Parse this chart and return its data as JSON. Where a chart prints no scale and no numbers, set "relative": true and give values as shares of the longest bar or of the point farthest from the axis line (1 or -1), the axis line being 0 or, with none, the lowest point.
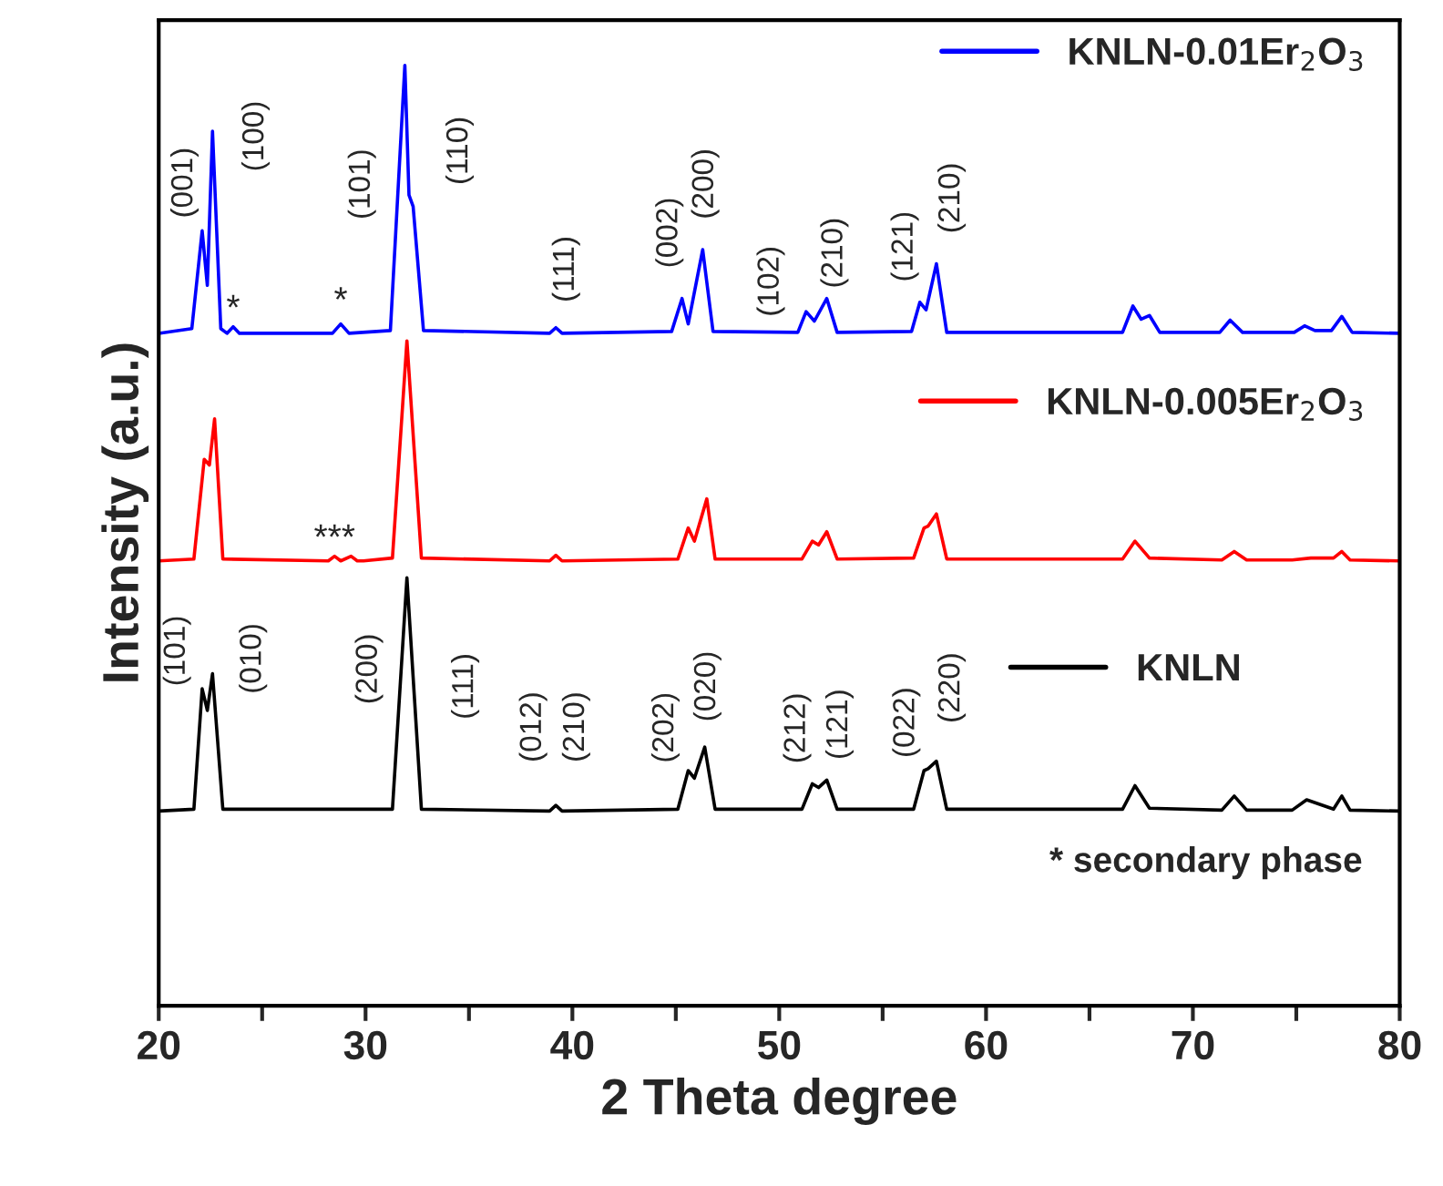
{
  "chart_data": {
    "type": "line",
    "relative": true,
    "xlabel": "2 Theta degree",
    "ylabel": "Intensity (a.u.)",
    "xlim": [
      20,
      80
    ],
    "xticks": [
      20,
      {
        "value": 25,
        "label": null
      },
      30,
      {
        "value": 35,
        "label": null
      },
      40,
      {
        "value": 45,
        "label": null
      },
      50,
      {
        "value": 55,
        "label": null
      },
      60,
      {
        "value": 65,
        "label": null
      },
      70,
      {
        "value": 75,
        "label": null
      },
      80
    ],
    "tick_labels": "x",
    "grid": false,
    "legend": "right",
    "marker": "none",
    "line_style": "solid",
    "series": [
      {
        "name": "KNLN-0.01Er$_{2}$O$_{3}$",
        "color": "#0000ff",
        "x": [
          20,
          21.6,
          22.1,
          22.35,
          22.6,
          23.0,
          23.3,
          23.6,
          23.9,
          28.4,
          28.8,
          29.2,
          31.2,
          31.9,
          32.1,
          32.3,
          32.8,
          38.9,
          39.2,
          39.5,
          44.8,
          45.3,
          45.6,
          46.3,
          46.8,
          50.9,
          51.3,
          51.7,
          52.3,
          52.8,
          56.4,
          56.8,
          57.1,
          57.6,
          58.1,
          66.6,
          67.1,
          67.5,
          67.9,
          68.4,
          71.3,
          71.8,
          72.4,
          74.9,
          75.4,
          75.9,
          76.7,
          77.2,
          77.7,
          80
        ],
        "values": [
          0.715,
          0.72,
          0.824,
          0.766,
          0.93,
          0.72,
          0.715,
          0.722,
          0.715,
          0.715,
          0.725,
          0.715,
          0.718,
          1.0,
          0.862,
          0.85,
          0.718,
          0.715,
          0.721,
          0.715,
          0.717,
          0.752,
          0.725,
          0.804,
          0.717,
          0.716,
          0.738,
          0.728,
          0.752,
          0.716,
          0.717,
          0.748,
          0.74,
          0.789,
          0.716,
          0.716,
          0.744,
          0.73,
          0.734,
          0.716,
          0.716,
          0.729,
          0.716,
          0.716,
          0.723,
          0.718,
          0.718,
          0.733,
          0.716,
          0.715
        ]
      },
      {
        "name": "KNLN-0.005Er$_{2}$O$_{3}$",
        "color": "#ff0000",
        "x": [
          20,
          21.7,
          22.2,
          22.45,
          22.7,
          23.1,
          28.2,
          28.5,
          28.8,
          29.3,
          29.6,
          29.9,
          31.3,
          32.0,
          32.7,
          38.9,
          39.2,
          39.5,
          45.1,
          45.6,
          45.9,
          46.5,
          46.9,
          51.1,
          51.6,
          51.9,
          52.3,
          52.8,
          56.5,
          57.0,
          57.2,
          57.6,
          58.1,
          66.6,
          67.2,
          67.9,
          71.4,
          72.0,
          72.6,
          74.8,
          75.7,
          76.8,
          77.2,
          77.6,
          80
        ],
        "values": [
          0.473,
          0.475,
          0.581,
          0.575,
          0.624,
          0.475,
          0.473,
          0.478,
          0.473,
          0.478,
          0.473,
          0.473,
          0.476,
          0.707,
          0.476,
          0.473,
          0.479,
          0.473,
          0.475,
          0.508,
          0.494,
          0.539,
          0.475,
          0.475,
          0.494,
          0.49,
          0.504,
          0.475,
          0.476,
          0.508,
          0.51,
          0.523,
          0.475,
          0.475,
          0.494,
          0.476,
          0.474,
          0.483,
          0.474,
          0.474,
          0.476,
          0.476,
          0.483,
          0.474,
          0.473
        ]
      },
      {
        "name": "KNLN",
        "color": "#000000",
        "x": [
          20,
          21.7,
          22.1,
          22.35,
          22.6,
          23.1,
          31.3,
          32.0,
          32.7,
          38.9,
          39.2,
          39.5,
          45.1,
          45.6,
          45.9,
          46.4,
          46.9,
          51.1,
          51.6,
          51.9,
          52.3,
          52.8,
          56.5,
          57.0,
          57.2,
          57.6,
          58.1,
          66.6,
          67.2,
          67.9,
          71.4,
          72.0,
          72.6,
          74.8,
          75.5,
          76.8,
          77.2,
          77.6,
          80
        ],
        "values": [
          0.207,
          0.209,
          0.337,
          0.314,
          0.353,
          0.209,
          0.209,
          0.455,
          0.209,
          0.207,
          0.213,
          0.207,
          0.209,
          0.25,
          0.242,
          0.275,
          0.209,
          0.209,
          0.236,
          0.232,
          0.24,
          0.209,
          0.209,
          0.25,
          0.252,
          0.26,
          0.209,
          0.209,
          0.234,
          0.21,
          0.208,
          0.223,
          0.208,
          0.208,
          0.219,
          0.209,
          0.223,
          0.208,
          0.207
        ]
      }
    ],
    "annotations": [
      {
        "text": "(001)",
        "x": 22.1,
        "y": 0.824
      },
      {
        "text": "(100)",
        "x": 22.6,
        "y": 0.93
      },
      {
        "text": "(101)",
        "x": 31.9,
        "y": 1.0
      },
      {
        "text": "(110)",
        "x": 32.1,
        "y": 0.862
      },
      {
        "text": "(111)",
        "x": 39.2,
        "y": 0.721
      },
      {
        "text": "(002)",
        "x": 45.3,
        "y": 0.752
      },
      {
        "text": "(200)",
        "x": 46.3,
        "y": 0.804
      },
      {
        "text": "(102)",
        "x": 51.3,
        "y": 0.738
      },
      {
        "text": "(210)",
        "x": 52.3,
        "y": 0.752
      },
      {
        "text": "(121)",
        "x": 56.8,
        "y": 0.748
      },
      {
        "text": "(210)",
        "x": 57.6,
        "y": 0.789
      },
      {
        "text": "*",
        "x": 23.6,
        "y": 0.722
      },
      {
        "text": "*",
        "x": 28.8,
        "y": 0.725
      },
      {
        "text": "***",
        "x": 28.5,
        "y": 0.478
      },
      {
        "text": "(101)",
        "x": 22.1,
        "y": 0.337
      },
      {
        "text": "(010)",
        "x": 22.6,
        "y": 0.353
      },
      {
        "text": "(200)",
        "x": 32.0,
        "y": 0.455
      },
      {
        "text": "(111)",
        "x": 32.0,
        "y": 0.455
      },
      {
        "text": "(012)",
        "x": 39.2,
        "y": 0.213
      },
      {
        "text": "(210)",
        "x": 39.2,
        "y": 0.213
      },
      {
        "text": "(202)",
        "x": 45.6,
        "y": 0.25
      },
      {
        "text": "(020)",
        "x": 46.4,
        "y": 0.275
      },
      {
        "text": "(212)",
        "x": 51.6,
        "y": 0.236
      },
      {
        "text": "(121)",
        "x": 52.3,
        "y": 0.24
      },
      {
        "text": "(022)",
        "x": 57.0,
        "y": 0.25
      },
      {
        "text": "(220)",
        "x": 57.6,
        "y": 0.26
      },
      "* secondary phase"
    ]
  }
}
